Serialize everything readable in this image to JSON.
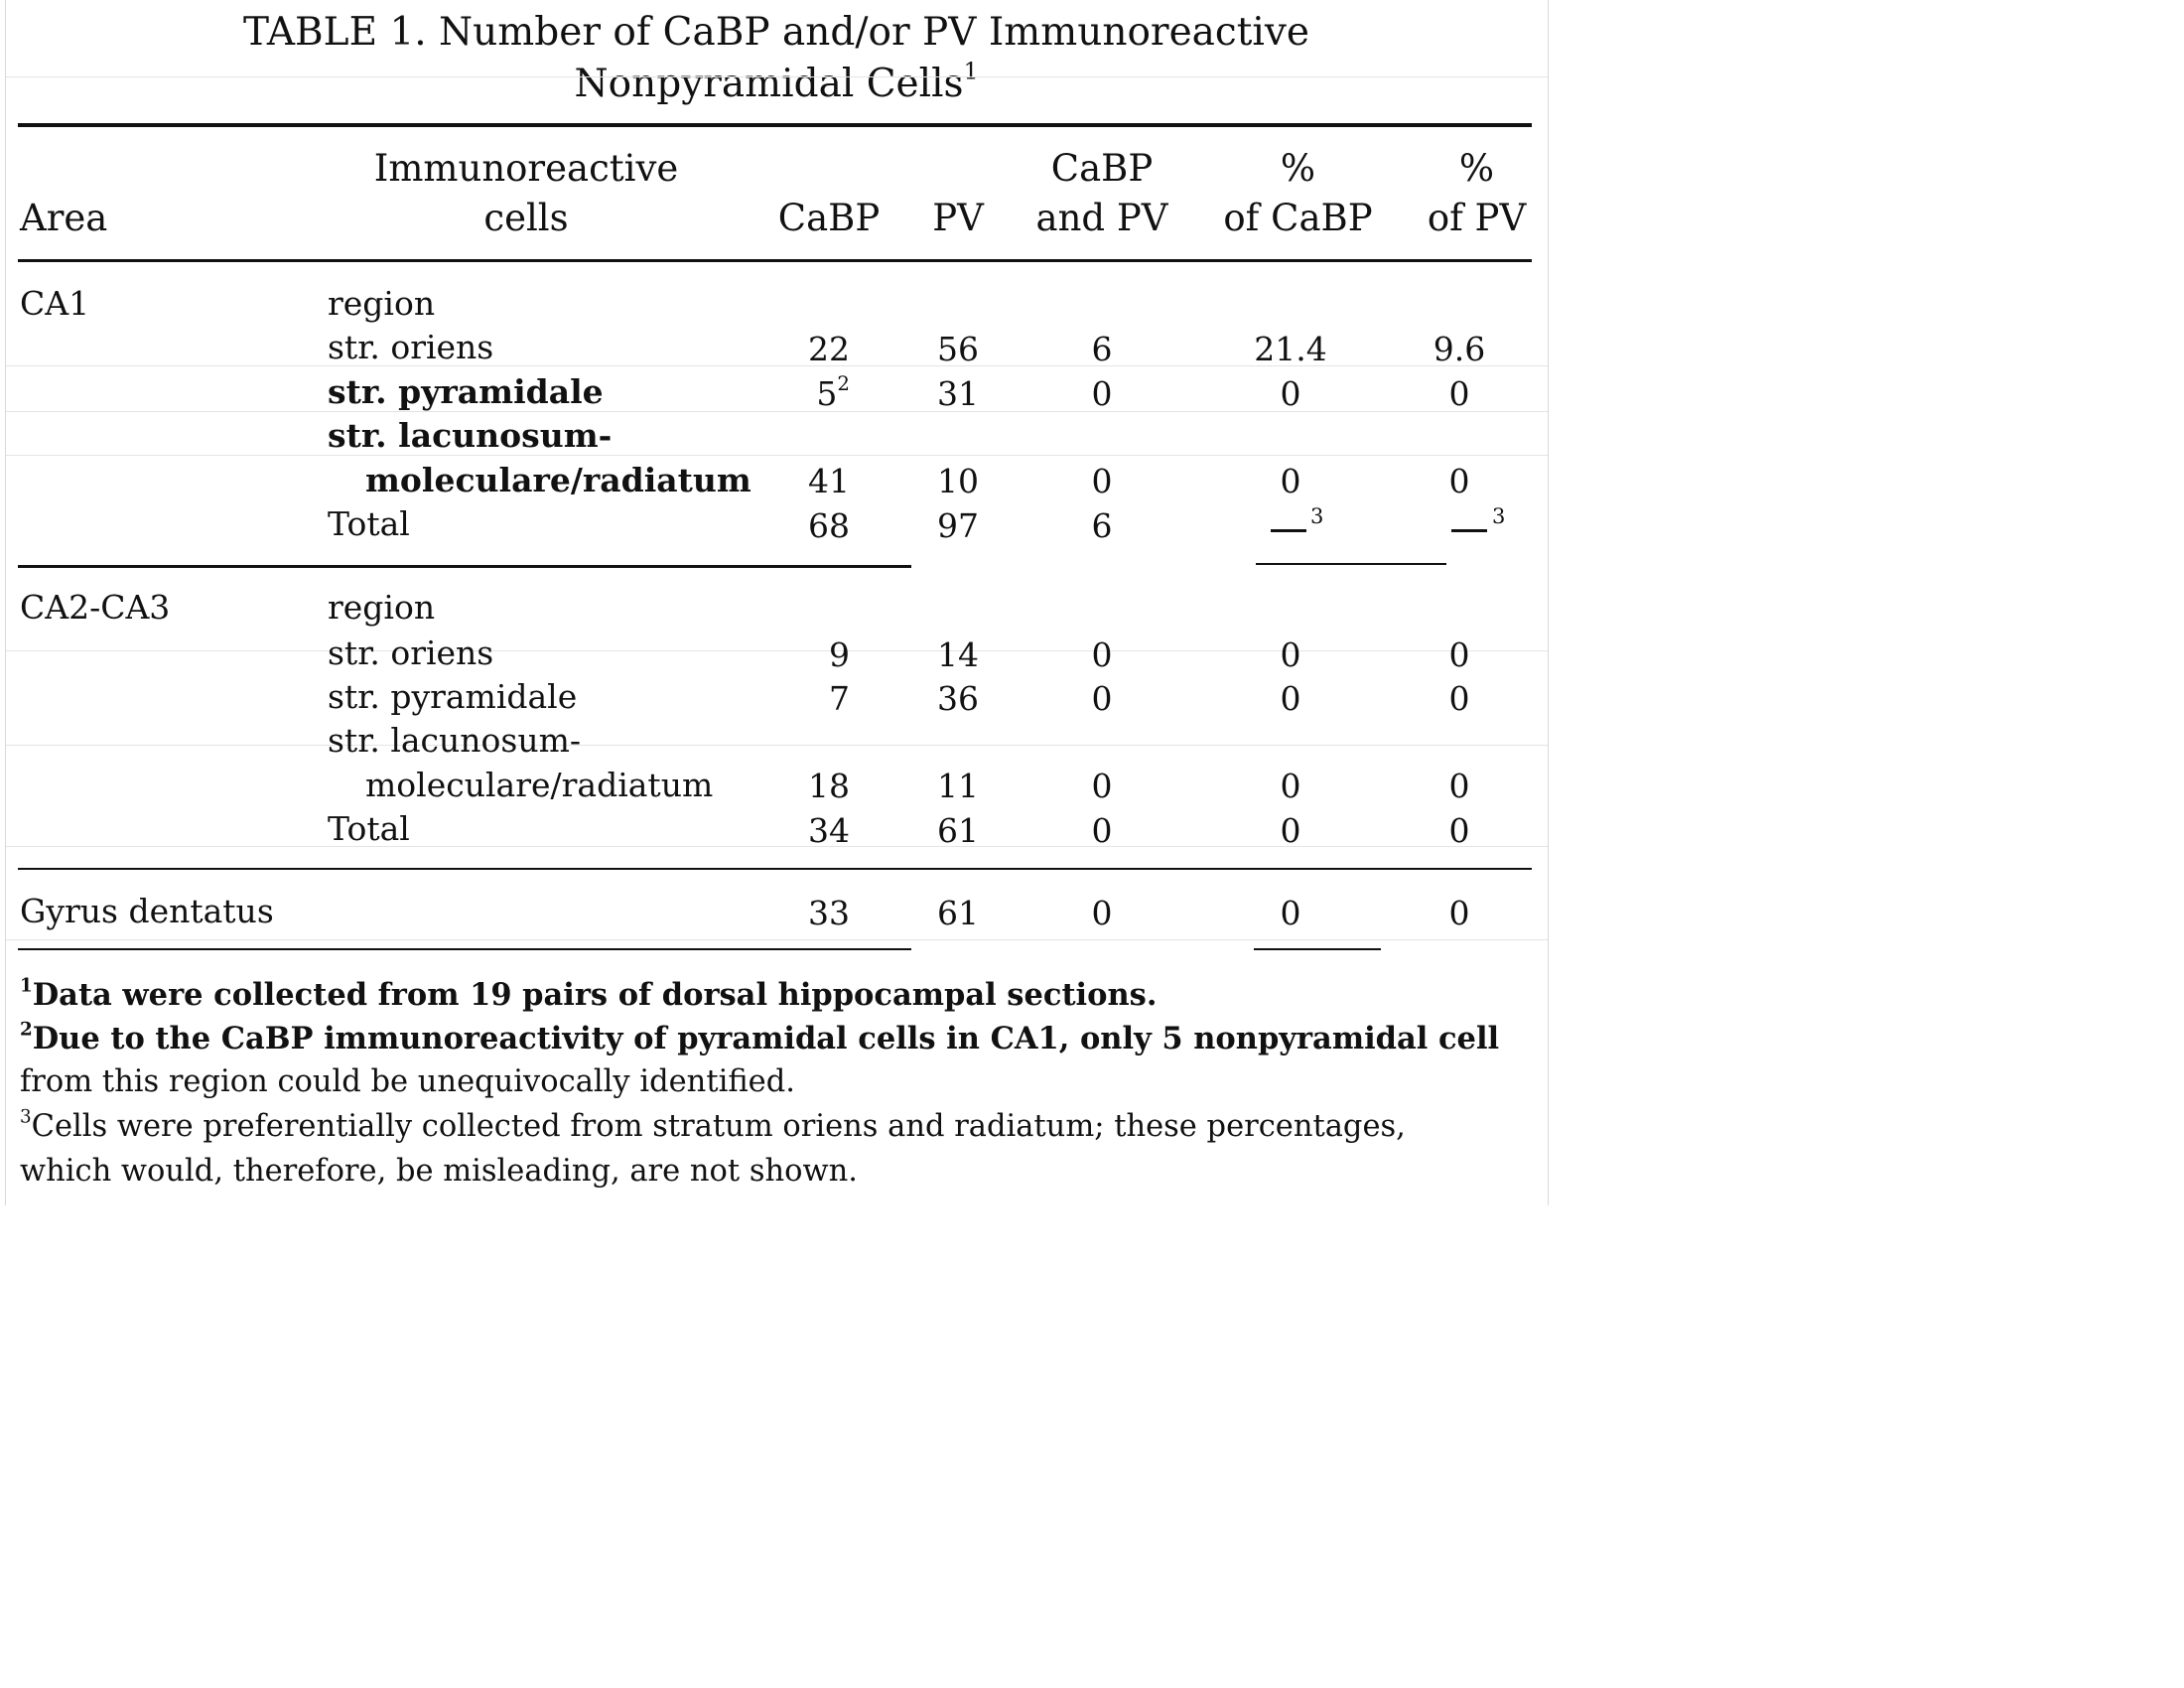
{
  "title": {
    "line1": "TABLE 1.  Number of CaBP and/or PV Immunoreactive",
    "line2": "Nonpyramidal Cells",
    "line2_sup": "1"
  },
  "headers": {
    "area": "Area",
    "cells_line1": "Immunoreactive",
    "cells_line2": "cells",
    "cabp": "CaBP",
    "pv": "PV",
    "both_line1": "CaBP",
    "both_line2": "and PV",
    "pct_cabp_line1": "%",
    "pct_cabp_line2": "of CaBP",
    "pct_pv_line1": "%",
    "pct_pv_line2": "of PV"
  },
  "ca1": {
    "area": "CA1",
    "region": "region",
    "oriens": {
      "label": "str. oriens",
      "cabp": "22",
      "pv": "56",
      "both": "6",
      "pct_cabp": "21.4",
      "pct_pv": "9.6"
    },
    "pyramidale": {
      "label": "str. pyramidale",
      "cabp": "5",
      "cabp_sup": "2",
      "pv": "31",
      "both": "0",
      "pct_cabp": "0",
      "pct_pv": "0"
    },
    "lacunosum": {
      "label1": "str. lacunosum-",
      "label2": "moleculare/radiatum",
      "cabp": "41",
      "pv": "10",
      "both": "0",
      "pct_cabp": "0",
      "pct_pv": "0"
    },
    "total": {
      "label": "Total",
      "cabp": "68",
      "pv": "97",
      "both": "6",
      "pct_cabp_sup": "3",
      "pct_pv_sup": "3"
    }
  },
  "ca23": {
    "area": "CA2-CA3",
    "region": "region",
    "oriens": {
      "label": "str. oriens",
      "cabp": "9",
      "pv": "14",
      "both": "0",
      "pct_cabp": "0",
      "pct_pv": "0"
    },
    "pyramidale": {
      "label": "str. pyramidale",
      "cabp": "7",
      "pv": "36",
      "both": "0",
      "pct_cabp": "0",
      "pct_pv": "0"
    },
    "lacunosum": {
      "label1": "str. lacunosum-",
      "label2": "moleculare/radiatum",
      "cabp": "18",
      "pv": "11",
      "both": "0",
      "pct_cabp": "0",
      "pct_pv": "0"
    },
    "total": {
      "label": "Total",
      "cabp": "34",
      "pv": "61",
      "both": "0",
      "pct_cabp": "0",
      "pct_pv": "0"
    }
  },
  "gyrus": {
    "area": "Gyrus dentatus",
    "cabp": "33",
    "pv": "61",
    "both": "0",
    "pct_cabp": "0",
    "pct_pv": "0"
  },
  "footnotes": [
    {
      "sup": "1",
      "line1": "Data were collected from 19 pairs of dorsal hippocampal sections."
    },
    {
      "sup": "2",
      "line1": "Due to the CaBP immunoreactivity of pyramidal cells in CA1, only 5 nonpyramidal cell",
      "line2": "from this region could be unequivocally identified."
    },
    {
      "sup": "3",
      "line1": "Cells were preferentially collected from stratum oriens and radiatum; these percentages,",
      "line2": "which would, therefore, be misleading, are not shown."
    }
  ]
}
